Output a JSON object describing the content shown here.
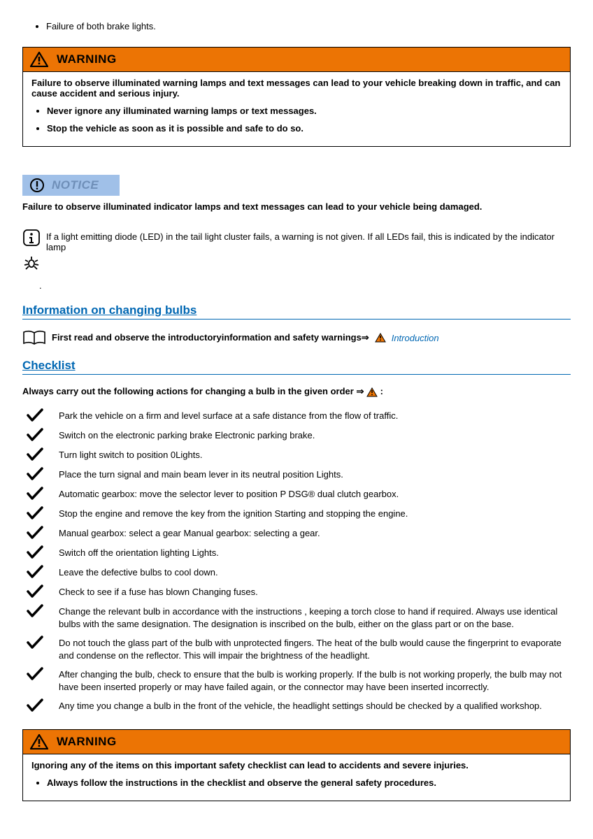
{
  "topBullet": "Failure of both brake lights.",
  "warning1": {
    "title": "WARNING",
    "lead": "Failure to observe illuminated warning lamps and text messages can lead to your vehicle breaking down in traffic, and can cause accident and serious injury.",
    "bullets": [
      "Never ignore any illuminated warning lamps or text messages.",
      "Stop the vehicle as soon as it is possible and safe to do so."
    ]
  },
  "notice": {
    "title": "NOTICE",
    "text": "Failure to observe illuminated indicator lamps and text messages can lead to your vehicle being damaged."
  },
  "ledInfo": "If a light emitting diode (LED) in the tail light cluster fails, a warning is not given. If all LEDs fail, this is indicated by the indicator lamp",
  "section1": "Information on changing bulbs",
  "readFirst": "First read and observe the introductoryinformation and safety warnings⇒",
  "introLink": "Introduction",
  "section2": "Checklist",
  "checklistLead": "Always carry out the following actions for changing a bulb in the given order ⇒",
  "checklistItems": [
    "Park the vehicle on a firm and level surface at a safe distance from the flow of traffic.",
    "Switch on the electronic parking brake Electronic parking brake.",
    "Turn light switch to position 0Lights.",
    "Place the turn signal and main beam lever in its neutral position Lights.",
    "Automatic gearbox: move the selector lever to position P DSG® dual clutch gearbox.",
    "Stop the engine and remove the key from the ignition Starting and stopping the engine.",
    "Manual gearbox: select a gear Manual gearbox: selecting a gear.",
    "Switch off the orientation lighting Lights.",
    "Leave the defective bulbs to cool down.",
    "Check to see if a fuse has blown Changing fuses.",
    "Change the relevant bulb in accordance with the instructions , keeping a torch close to hand if required. Always use identical bulbs with the same designation. The designation is inscribed on the bulb, either on the glass part or on the base.",
    "Do not touch the glass part of the bulb with unprotected fingers. The heat of the bulb would cause the fingerprint to evaporate and condense on the reflector. This will impair the brightness of the headlight.",
    "After changing the bulb, check to ensure that the bulb is working properly. If the bulb is not working properly, the bulb may not have been inserted properly or may have failed again, or the connector may have been inserted incorrectly.",
    "Any time you change a bulb in the front of the vehicle, the headlight settings should be checked by a qualified workshop."
  ],
  "warning2": {
    "title": "WARNING",
    "lead": "Ignoring any of the items on this important safety checklist can lead to accidents and severe injuries.",
    "bullets": [
      "Always follow the instructions in the checklist and observe the general safety procedures."
    ]
  },
  "colors": {
    "warningBg": "#ec7404",
    "noticeBg": "#a0c0e8",
    "noticeText": "#6f8fb8",
    "link": "#0067b3"
  }
}
